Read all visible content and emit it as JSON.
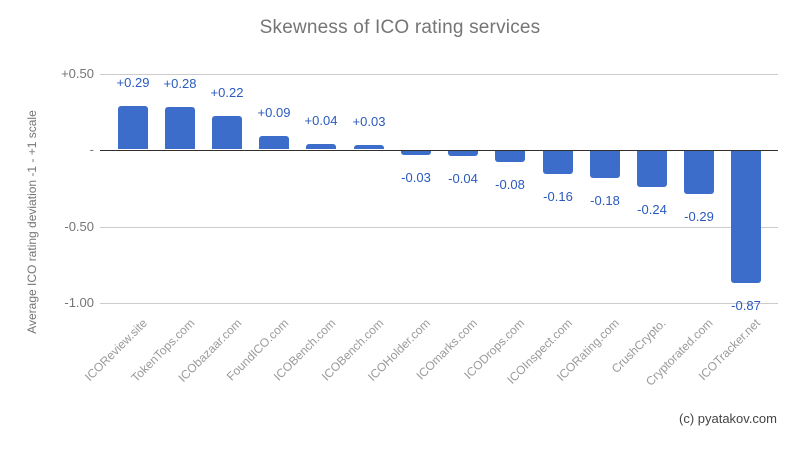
{
  "title": "Skewness of ICO rating services",
  "footer": "(c) pyatakov.com",
  "chart_data": {
    "type": "bar",
    "title": "Skewness of ICO rating services",
    "ylabel": "Average ICO rating deviation -1 - +1 scale",
    "xlabel": "",
    "categories": [
      "ICOReview.site",
      "TokenTops.com",
      "ICObazaar.com",
      "FoundICO.com",
      "ICOBench.com",
      "ICOBench.com",
      "ICOHolder.com",
      "ICOmarks.com",
      "ICODrops.com",
      "ICOInspect.com",
      "ICORating.com",
      "CrushCrypto.",
      "Cryptorated.com",
      "ICOTracker.net"
    ],
    "values": [
      0.29,
      0.28,
      0.22,
      0.09,
      0.04,
      0.03,
      -0.03,
      -0.04,
      -0.08,
      -0.16,
      -0.18,
      -0.24,
      -0.29,
      -0.87
    ],
    "annotations": [
      "+0.29",
      "+0.28",
      "+0.22",
      "+0.09",
      "+0.04",
      "+0.03",
      "-0.03",
      "-0.04",
      "-0.08",
      "-0.16",
      "-0.18",
      "-0.24",
      "-0.29",
      "-0.87"
    ],
    "ylim": [
      -1.0,
      0.5
    ],
    "grid": true,
    "legend": "none",
    "y_ticks": [
      {
        "value": 0.5,
        "label": "+0.50"
      },
      {
        "value": 0,
        "label": "-"
      },
      {
        "value": -0.5,
        "label": "-0.50"
      },
      {
        "value": -1.0,
        "label": "-1.00"
      }
    ],
    "colors": {
      "bar": "#3D6DCB",
      "annotation": "#2A5AC0",
      "gridline": "#CCCCCC",
      "baseline": "#332F2B",
      "axis_text": "#757575",
      "category_text": "#9A9A9A",
      "title_text": "#757575",
      "footer_text": "#444444"
    }
  }
}
